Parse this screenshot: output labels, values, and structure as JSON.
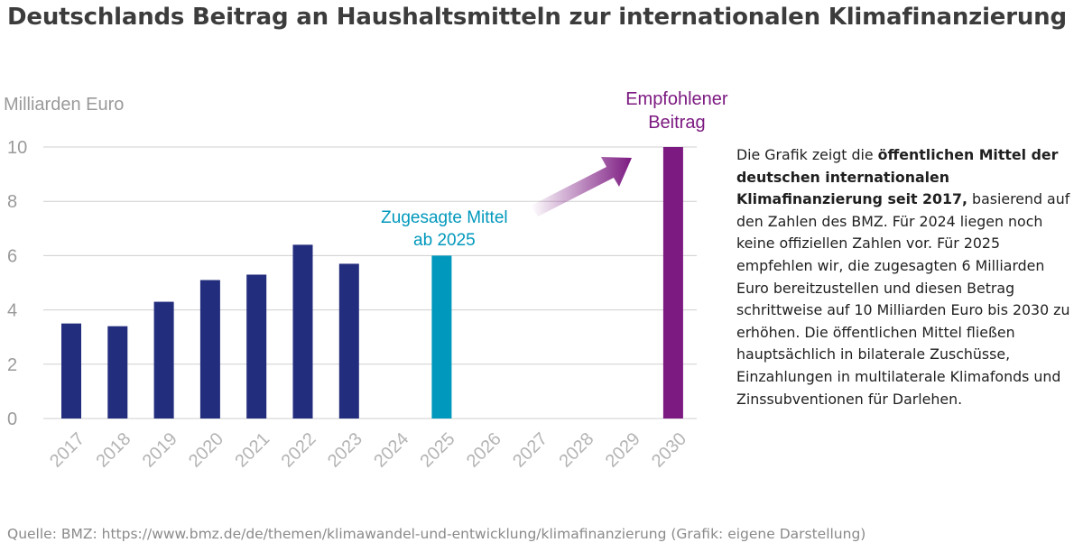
{
  "title": "Deutschlands Beitrag an Haushaltsmitteln zur internationalen Klimafinanzierung",
  "chart_data": {
    "type": "bar",
    "ylabel": "Milliarden Euro",
    "ylim": [
      0,
      10
    ],
    "yticks": [
      0,
      2,
      4,
      6,
      8,
      10
    ],
    "grid": true,
    "categories": [
      "2017",
      "2018",
      "2019",
      "2020",
      "2021",
      "2022",
      "2023",
      "2024",
      "2025",
      "2026",
      "2027",
      "2028",
      "2029",
      "2030"
    ],
    "series": [
      {
        "name": "Öffentliche Mittel",
        "color": "#232d7d",
        "values": [
          3.5,
          3.4,
          4.3,
          5.1,
          5.3,
          6.4,
          5.7,
          null,
          null,
          null,
          null,
          null,
          null,
          null
        ]
      },
      {
        "name": "Zugesagte Mittel ab 2025",
        "color": "#0098bc",
        "values": [
          null,
          null,
          null,
          null,
          null,
          null,
          null,
          null,
          6.0,
          null,
          null,
          null,
          null,
          null
        ]
      },
      {
        "name": "Empfohlener Beitrag",
        "color": "#7c1a81",
        "values": [
          null,
          null,
          null,
          null,
          null,
          null,
          null,
          null,
          null,
          null,
          null,
          null,
          null,
          10.0
        ]
      }
    ],
    "annotations": [
      {
        "text": [
          "Zugesagte Mittel",
          "ab 2025"
        ],
        "color": "#0098bc"
      },
      {
        "text": [
          "Empfohlener",
          "Beitrag"
        ],
        "color": "#7c1a81"
      }
    ]
  },
  "description": {
    "prefix": "Die Grafik zeigt die ",
    "bold": "öffentlichen Mittel der deutschen internationalen Klimafinanzierung seit 2017,",
    "suffix": " basierend auf den Zahlen des BMZ. Für 2024 liegen noch keine offiziellen Zahlen vor. Für 2025 empfehlen wir, die zugesagten 6 Milliarden Euro bereitzustellen und diesen Betrag schrittweise auf 10 Milliarden Euro bis 2030 zu erhöhen. Die öffentlichen Mittel fließen hauptsächlich in bilaterale Zuschüsse, Einzahlungen in multilaterale Klimafonds und Zinssubventionen für Darlehen."
  },
  "source": "Quelle: BMZ: https://www.bmz.de/de/themen/klimawandel-und-entwicklung/klimafinanzierung (Grafik: eigene Darstellung)"
}
